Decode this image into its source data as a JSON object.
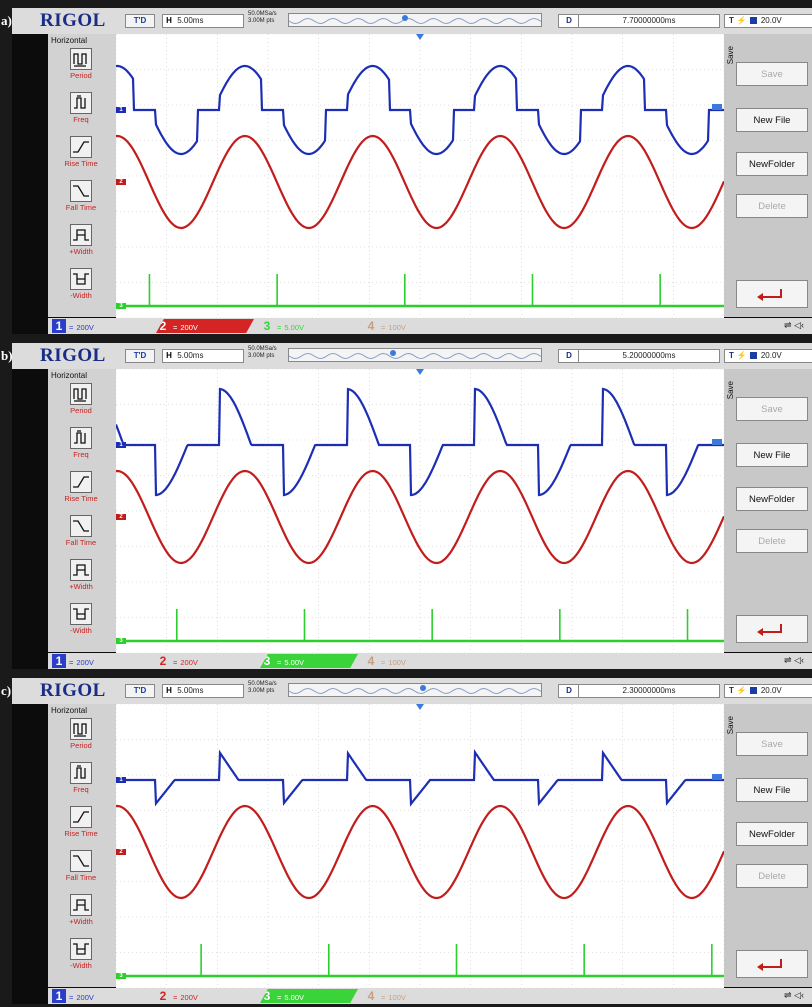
{
  "panels": [
    {
      "label": "a)",
      "brand": "RIGOL",
      "mode": "T'D",
      "h_label": "H",
      "timebase": "5.00ms",
      "sample_rate": "50.0MSa/s",
      "mem_depth": "3.00M pts",
      "delay_label": "D",
      "delay": "7.70000000ms",
      "trigger_label": "T",
      "trigger_level": "20.0V",
      "menu_title": "Horizontal",
      "measure_items": [
        {
          "label": "Period",
          "icon": "period-icon"
        },
        {
          "label": "Freq",
          "icon": "freq-icon"
        },
        {
          "label": "Rise Time",
          "icon": "rise-time-icon"
        },
        {
          "label": "Fall Time",
          "icon": "fall-time-icon"
        },
        {
          "label": "+Width",
          "icon": "pos-width-icon"
        },
        {
          "label": "-Width",
          "icon": "neg-width-icon"
        }
      ],
      "side_label": "Save",
      "buttons": {
        "save": "Save",
        "new_file": "New File",
        "new_folder": "NewFolder",
        "delete": "Delete"
      },
      "channels": [
        {
          "num": "1",
          "coupling": "=",
          "scale": "200V",
          "color": "#2a3ec8",
          "active": false
        },
        {
          "num": "2",
          "coupling": "=",
          "scale": "200V",
          "color": "#d42424",
          "active": true
        },
        {
          "num": "3",
          "coupling": "=",
          "scale": "5.00V",
          "color": "#3ad43a",
          "active": false
        },
        {
          "num": "4",
          "coupling": "=",
          "scale": "100V",
          "color": "#c8a080",
          "active": false
        }
      ],
      "mem_marker_pos": 0.45,
      "waveform": {
        "type": "sine_phase_cut",
        "pulse_positions": [
          0.055,
          0.265,
          0.475,
          0.685,
          0.895
        ]
      }
    },
    {
      "label": "b)",
      "brand": "RIGOL",
      "mode": "T'D",
      "h_label": "H",
      "timebase": "5.00ms",
      "sample_rate": "50.0MSa/s",
      "mem_depth": "3.00M pts",
      "delay_label": "D",
      "delay": "5.20000000ms",
      "trigger_label": "T",
      "trigger_level": "20.0V",
      "menu_title": "Horizontal",
      "measure_items": [
        {
          "label": "Period",
          "icon": "period-icon"
        },
        {
          "label": "Freq",
          "icon": "freq-icon"
        },
        {
          "label": "Rise Time",
          "icon": "rise-time-icon"
        },
        {
          "label": "Fall Time",
          "icon": "fall-time-icon"
        },
        {
          "label": "+Width",
          "icon": "pos-width-icon"
        },
        {
          "label": "-Width",
          "icon": "neg-width-icon"
        }
      ],
      "side_label": "Save",
      "buttons": {
        "save": "Save",
        "new_file": "New File",
        "new_folder": "NewFolder",
        "delete": "Delete"
      },
      "channels": [
        {
          "num": "1",
          "coupling": "=",
          "scale": "200V",
          "color": "#2a3ec8",
          "active": false
        },
        {
          "num": "2",
          "coupling": "=",
          "scale": "200V",
          "color": "#d42424",
          "active": false
        },
        {
          "num": "3",
          "coupling": "=",
          "scale": "5.00V",
          "color": "#3ad43a",
          "active": true
        },
        {
          "num": "4",
          "coupling": "=",
          "scale": "100V",
          "color": "#c8a080",
          "active": false
        }
      ],
      "mem_marker_pos": 0.4,
      "waveform": {
        "type": "decay_pulse",
        "pulse_positions": [
          0.1,
          0.31,
          0.52,
          0.73,
          0.94
        ]
      }
    },
    {
      "label": "c)",
      "brand": "RIGOL",
      "mode": "T'D",
      "h_label": "H",
      "timebase": "5.00ms",
      "sample_rate": "50.0MSa/s",
      "mem_depth": "3.00M pts",
      "delay_label": "D",
      "delay": "2.30000000ms",
      "trigger_label": "T",
      "trigger_level": "20.0V",
      "menu_title": "Horizontal",
      "measure_items": [
        {
          "label": "Period",
          "icon": "period-icon"
        },
        {
          "label": "Freq",
          "icon": "freq-icon"
        },
        {
          "label": "Rise Time",
          "icon": "rise-time-icon"
        },
        {
          "label": "Fall Time",
          "icon": "fall-time-icon"
        },
        {
          "label": "+Width",
          "icon": "pos-width-icon"
        },
        {
          "label": "-Width",
          "icon": "neg-width-icon"
        }
      ],
      "side_label": "Save",
      "buttons": {
        "save": "Save",
        "new_file": "New File",
        "new_folder": "NewFolder",
        "delete": "Delete"
      },
      "channels": [
        {
          "num": "1",
          "coupling": "=",
          "scale": "200V",
          "color": "#2a3ec8",
          "active": false
        },
        {
          "num": "2",
          "coupling": "=",
          "scale": "200V",
          "color": "#d42424",
          "active": false
        },
        {
          "num": "3",
          "coupling": "=",
          "scale": "5.00V",
          "color": "#3ad43a",
          "active": true
        },
        {
          "num": "4",
          "coupling": "=",
          "scale": "100V",
          "color": "#c8a080",
          "active": false
        }
      ],
      "mem_marker_pos": 0.52,
      "waveform": {
        "type": "small_pulse",
        "pulse_positions": [
          0.14,
          0.35,
          0.56,
          0.77,
          0.98
        ]
      }
    }
  ],
  "colors": {
    "ch1": "#1c2fb4",
    "ch2": "#c21c1c",
    "ch3": "#2ccf2c",
    "grid": "#c8c8c8",
    "brand": "#1a2c86"
  }
}
